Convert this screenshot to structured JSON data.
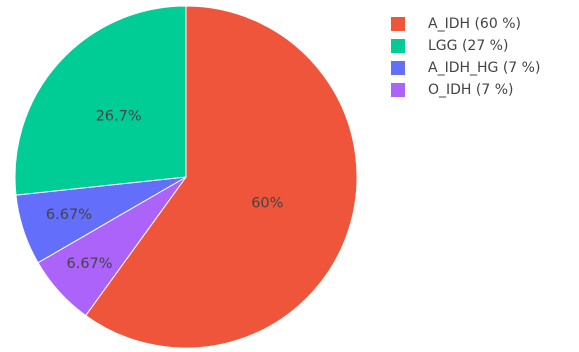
{
  "chart_data": {
    "type": "pie",
    "slices": [
      {
        "label": "A_IDH",
        "value": 60,
        "percent_label": "60%",
        "legend_label": "A_IDH (60 %)",
        "color": "#EF553B"
      },
      {
        "label": "O_IDH",
        "value": 6.67,
        "percent_label": "6.67%",
        "legend_label": "O_IDH (7 %)",
        "color": "#AB63FA"
      },
      {
        "label": "A_IDH_HG",
        "value": 6.67,
        "percent_label": "6.67%",
        "legend_label": "A_IDH_HG (7 %)",
        "color": "#636EFA"
      },
      {
        "label": "LGG",
        "value": 26.7,
        "percent_label": "26.7%",
        "legend_label": "LGG (27 %)",
        "color": "#00CC96"
      }
    ],
    "legend_order": [
      "A_IDH",
      "LGG",
      "A_IDH_HG",
      "O_IDH"
    ],
    "legend_position": "top-right",
    "direction": "clockwise",
    "start": "top"
  }
}
